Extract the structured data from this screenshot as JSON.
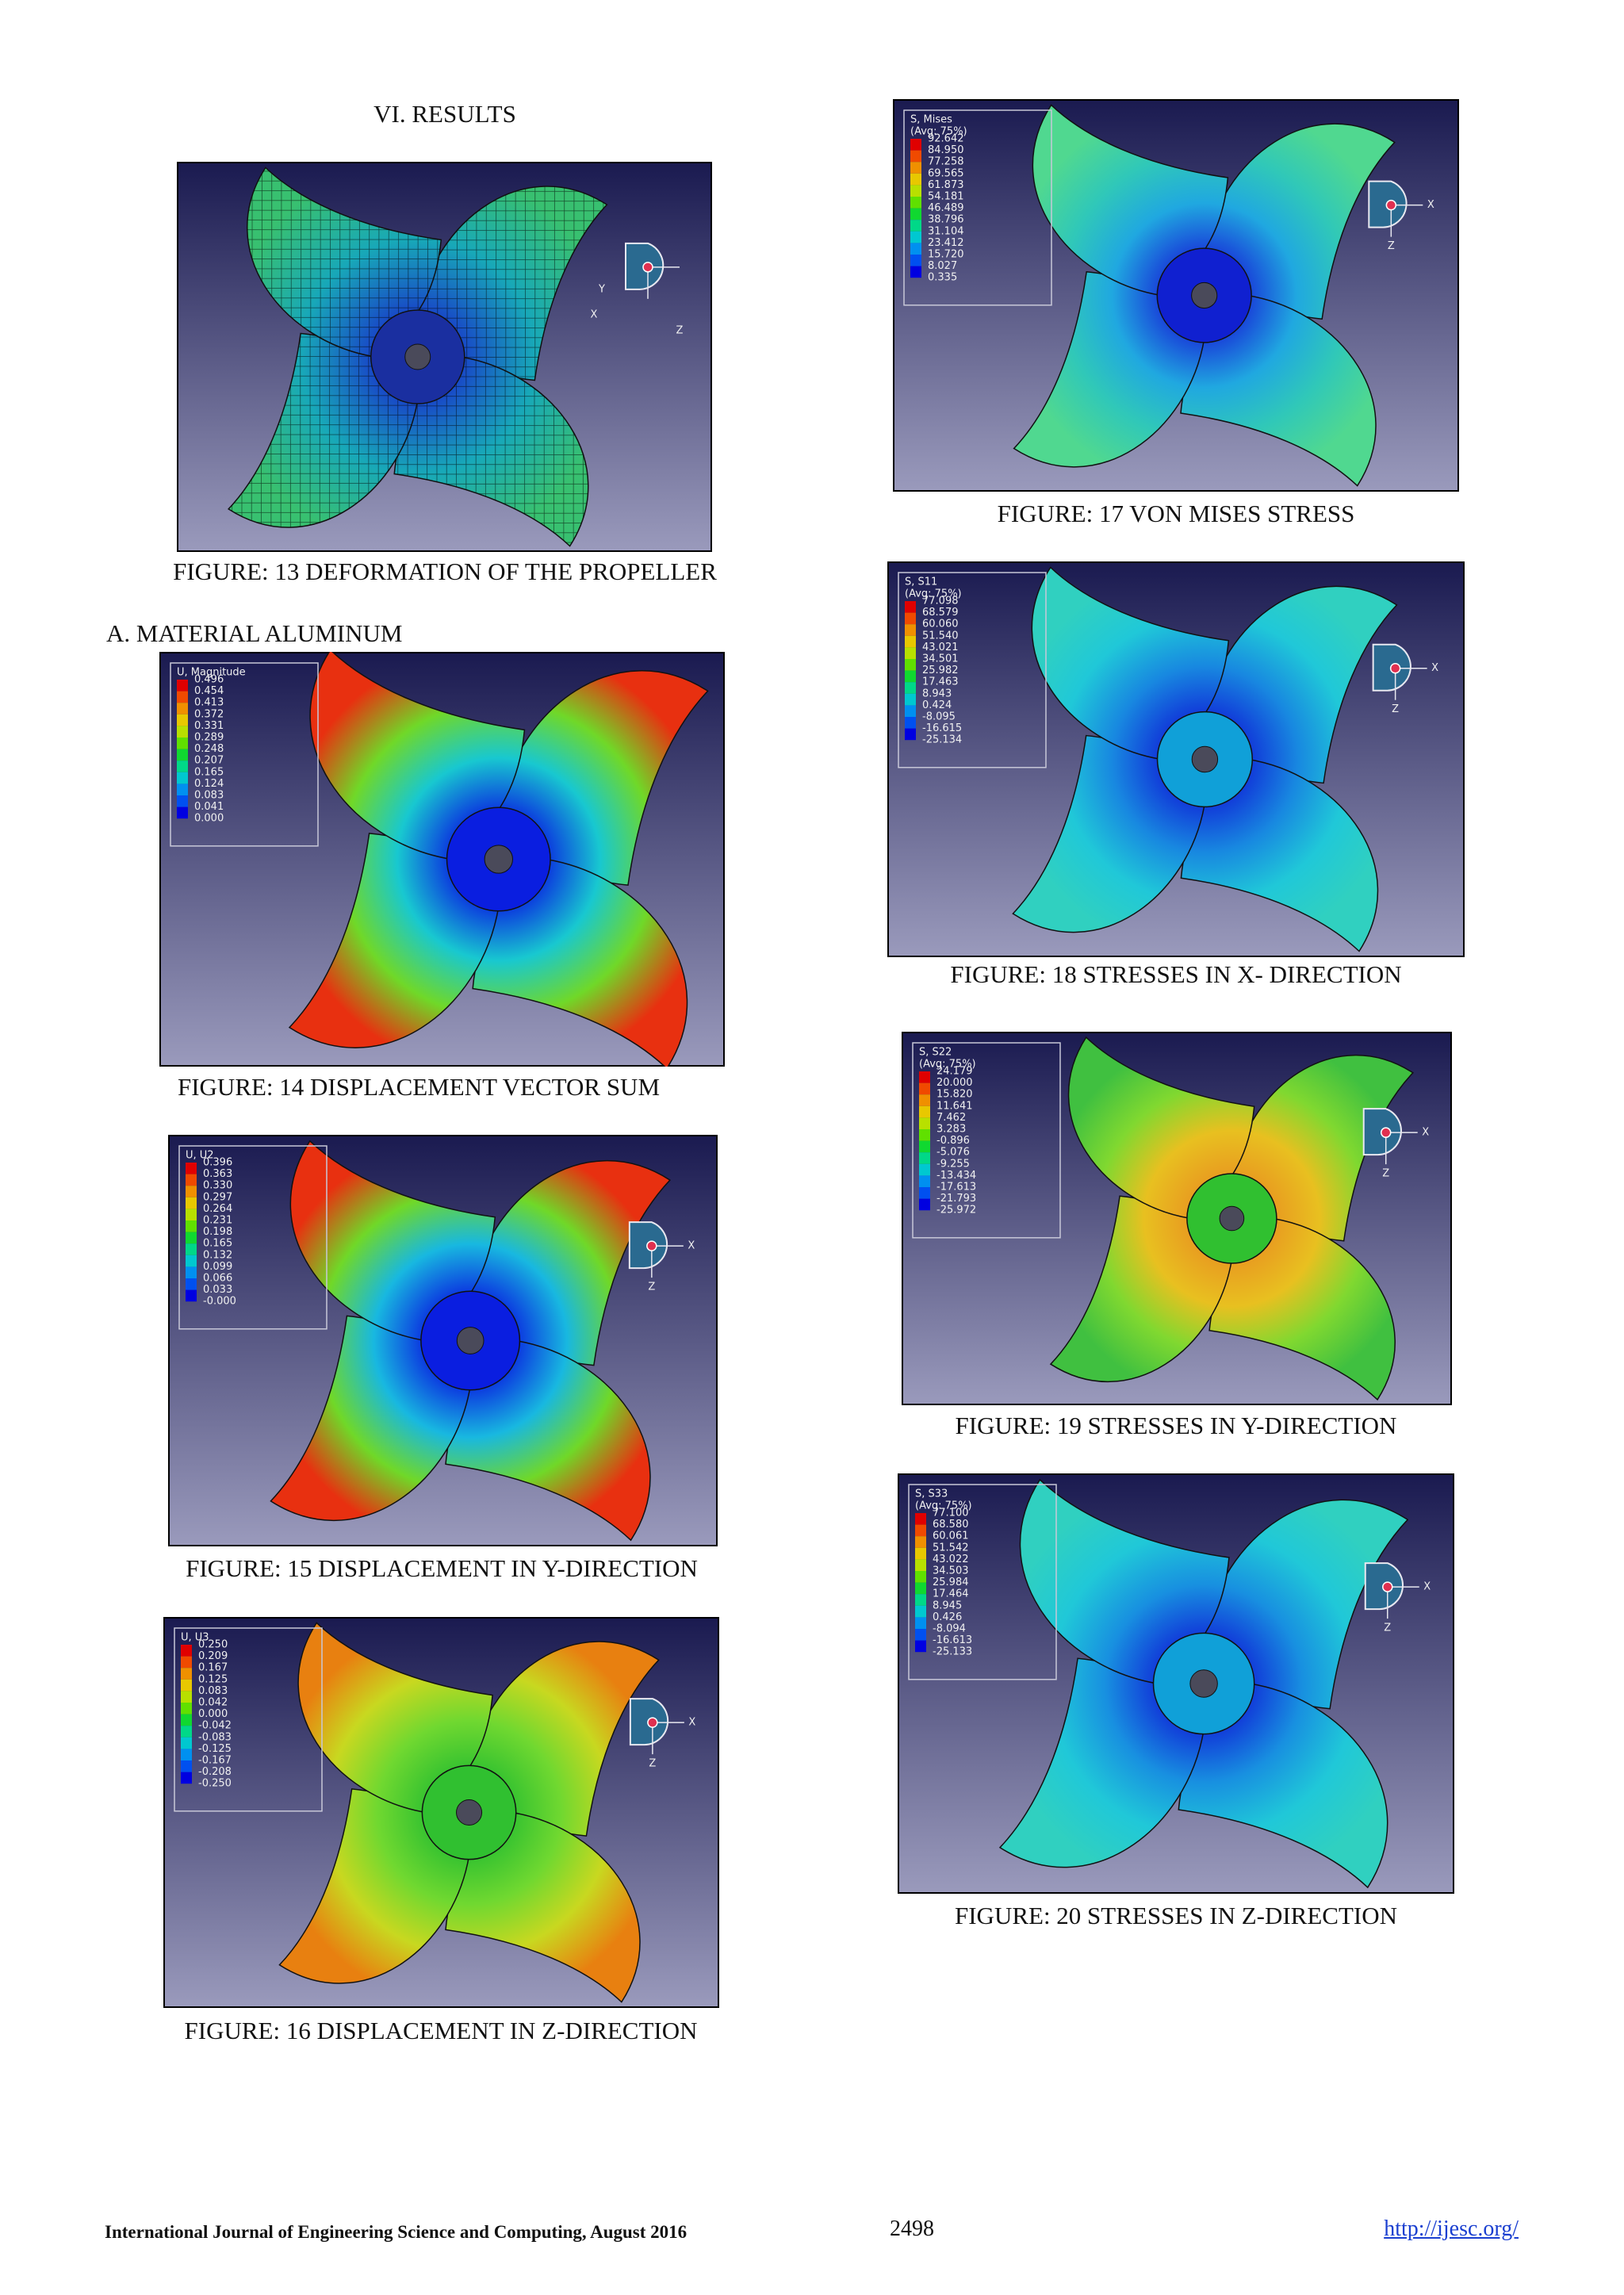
{
  "section_title": "VI. RESULTS",
  "subsection_title": "A. MATERIAL ALUMINUM",
  "figures": [
    {
      "caption": "FIGURE: 13  DEFORMATION OF THE PROPELLER",
      "triad": [
        "Y",
        "X",
        "Z"
      ]
    },
    {
      "caption": "FIGURE: 14  DISPLACEMENT VECTOR SUM",
      "legend": {
        "title": [
          "U, Magnitude"
        ],
        "values": [
          "0.496",
          "0.454",
          "0.413",
          "0.372",
          "0.331",
          "0.289",
          "0.248",
          "0.207",
          "0.165",
          "0.124",
          "0.083",
          "0.041",
          "0.000"
        ]
      }
    },
    {
      "caption": "FIGURE: 15 DISPLACEMENT IN Y-DIRECTION",
      "legend": {
        "title": [
          "U, U2"
        ],
        "values": [
          "0.396",
          "0.363",
          "0.330",
          "0.297",
          "0.264",
          "0.231",
          "0.198",
          "0.165",
          "0.132",
          "0.099",
          "0.066",
          "0.033",
          "-0.000"
        ]
      },
      "triad": [
        "X",
        "Z"
      ]
    },
    {
      "caption": "FIGURE: 16 DISPLACEMENT IN Z-DIRECTION",
      "legend": {
        "title": [
          "U, U3"
        ],
        "values": [
          "0.250",
          "0.209",
          "0.167",
          "0.125",
          "0.083",
          "0.042",
          "0.000",
          "-0.042",
          "-0.083",
          "-0.125",
          "-0.167",
          "-0.208",
          "-0.250"
        ]
      },
      "triad": [
        "X",
        "Z"
      ]
    },
    {
      "caption": "FIGURE: 17 VON MISES STRESS",
      "legend": {
        "title": [
          "S, Mises",
          "(Avg: 75%)"
        ],
        "values": [
          "92.642",
          "84.950",
          "77.258",
          "69.565",
          "61.873",
          "54.181",
          "46.489",
          "38.796",
          "31.104",
          "23.412",
          "15.720",
          "8.027",
          "0.335"
        ]
      },
      "triad": [
        "X",
        "Z"
      ]
    },
    {
      "caption": "FIGURE: 18 STRESSES IN X- DIRECTION",
      "legend": {
        "title": [
          "S, S11",
          "(Avg: 75%)"
        ],
        "values": [
          "77.098",
          "68.579",
          "60.060",
          "51.540",
          "43.021",
          "34.501",
          "25.982",
          "17.463",
          "8.943",
          "0.424",
          "-8.095",
          "-16.615",
          "-25.134"
        ]
      },
      "triad": [
        "X",
        "Z"
      ]
    },
    {
      "caption": "FIGURE: 19 STRESSES IN Y-DIRECTION",
      "legend": {
        "title": [
          "S, S22",
          "(Avg: 75%)"
        ],
        "values": [
          "24.179",
          "20.000",
          "15.820",
          "11.641",
          "7.462",
          "3.283",
          "-0.896",
          "-5.076",
          "-9.255",
          "-13.434",
          "-17.613",
          "-21.793",
          "-25.972"
        ]
      },
      "triad": [
        "X",
        "Z"
      ]
    },
    {
      "caption": "FIGURE: 20 STRESSES IN Z-DIRECTION",
      "legend": {
        "title": [
          "S, S33",
          "(Avg: 75%)"
        ],
        "values": [
          "77.100",
          "68.580",
          "60.061",
          "51.542",
          "43.022",
          "34.503",
          "25.984",
          "17.464",
          "8.945",
          "0.426",
          "-8.094",
          "-16.613",
          "-25.133"
        ]
      },
      "triad": [
        "X",
        "Z"
      ]
    }
  ],
  "footer": {
    "journal": "International Journal of Engineering Science and Computing, August 2016",
    "page": "2498",
    "url": "http://ijesc.org/"
  }
}
